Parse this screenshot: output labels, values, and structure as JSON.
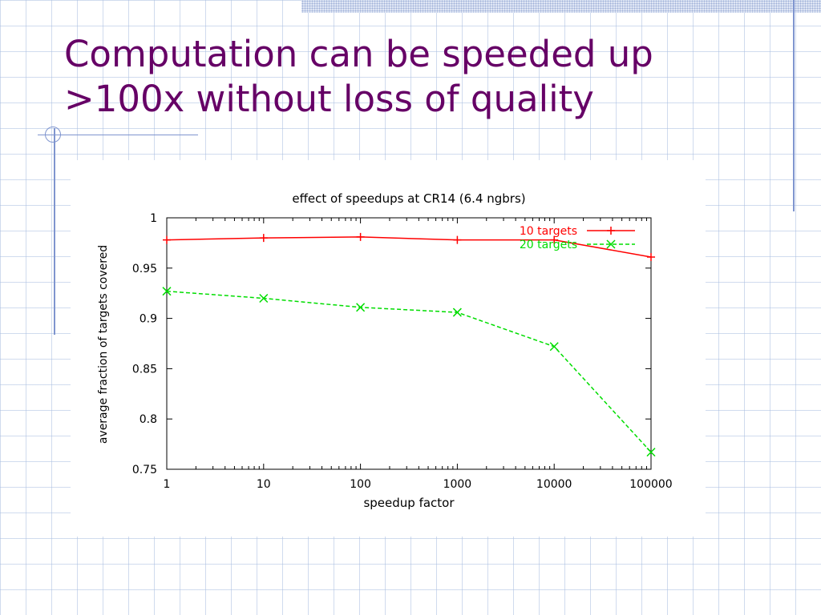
{
  "slide": {
    "title_line1": "Computation can be speeded up",
    "title_line2": ">100x without loss of quality"
  },
  "colors": {
    "title": "#660066",
    "series_10": "#ff0000",
    "series_20": "#00dd00",
    "decoration": "#7f95cf"
  },
  "chart_data": {
    "type": "line",
    "title": "effect of speedups at CR14 (6.4 ngbrs)",
    "xlabel": "speedup factor",
    "ylabel": "average fraction of targets covered",
    "x_scale": "log",
    "xlim": [
      1,
      100000
    ],
    "ylim": [
      0.75,
      1
    ],
    "x": [
      1,
      10,
      100,
      1000,
      10000,
      100000
    ],
    "x_ticks": [
      "1",
      "10",
      "100",
      "1000",
      "10000",
      "100000"
    ],
    "y_ticks": [
      "0.75",
      "0.8",
      "0.85",
      "0.9",
      "0.95",
      "1"
    ],
    "grid": false,
    "legend_position": "top-right",
    "series": [
      {
        "name": "10 targets",
        "color": "#ff0000",
        "marker": "+",
        "dash": "solid",
        "values": [
          0.978,
          0.98,
          0.981,
          0.978,
          0.978,
          0.961
        ]
      },
      {
        "name": "20 targets",
        "color": "#00dd00",
        "marker": "x",
        "dash": "dashed",
        "values": [
          0.927,
          0.92,
          0.911,
          0.906,
          0.872,
          0.767
        ]
      }
    ]
  }
}
